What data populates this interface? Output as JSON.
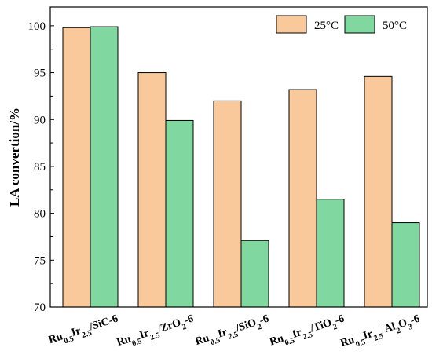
{
  "chart_data": {
    "type": "bar",
    "title": "",
    "xlabel": "",
    "ylabel": "LA convertion/%",
    "ylim": [
      70,
      102
    ],
    "yticks": [
      70,
      75,
      80,
      85,
      90,
      95,
      100
    ],
    "legend_position": "top-right",
    "grid": false,
    "categories": [
      {
        "parts": [
          "Ru",
          "0.5",
          "Ir",
          "2.5",
          "/SiC-6"
        ]
      },
      {
        "parts": [
          "Ru",
          "0.5",
          "Ir",
          "2.5",
          "/ZrO",
          "2",
          "-6"
        ]
      },
      {
        "parts": [
          "Ru",
          "0.5",
          "Ir",
          "2.5",
          "/SiO",
          "2",
          "-6"
        ]
      },
      {
        "parts": [
          "Ru",
          "0.5",
          "Ir",
          "2.5",
          "/TiO",
          "2",
          "-6"
        ]
      },
      {
        "parts": [
          "Ru",
          "0.5",
          "Ir",
          "2.5",
          "/Al",
          "2",
          "O",
          "3",
          "-6"
        ]
      }
    ],
    "series": [
      {
        "name": "25°C",
        "color": "#f9c89b",
        "values": [
          99.8,
          95.0,
          92.0,
          93.2,
          94.6
        ]
      },
      {
        "name": "50°C",
        "color": "#80d8a0",
        "values": [
          99.9,
          89.9,
          77.1,
          81.5,
          79.0
        ]
      }
    ]
  }
}
